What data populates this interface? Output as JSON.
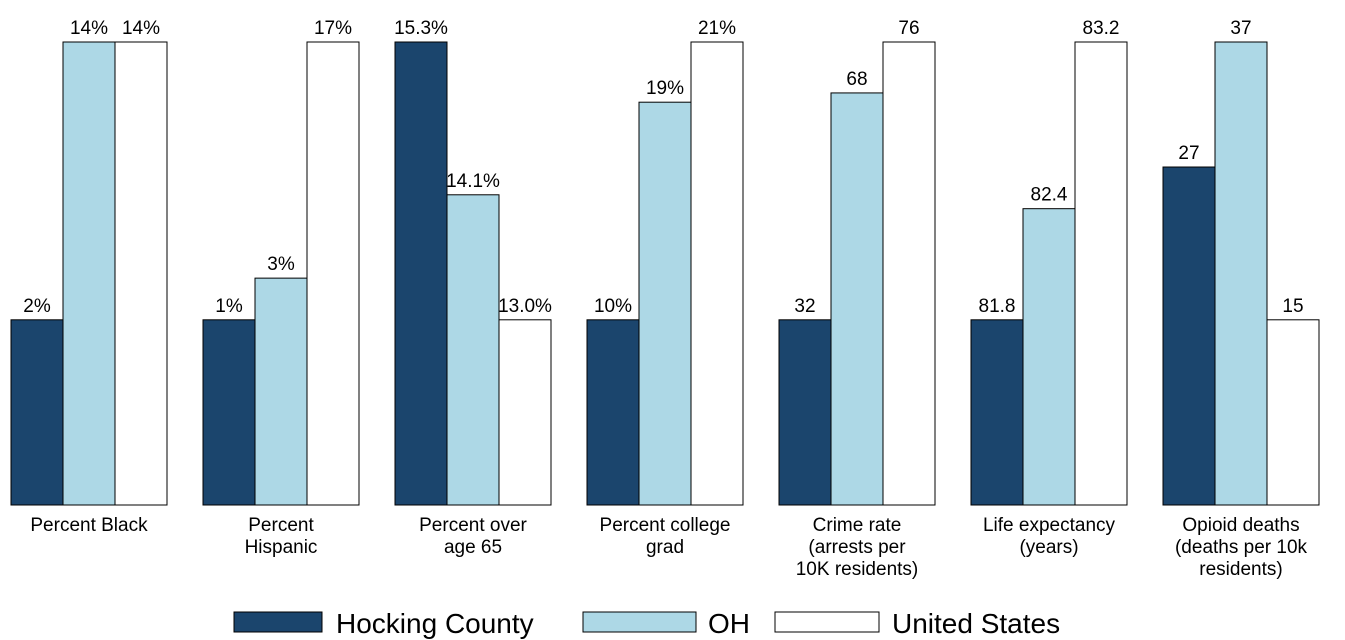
{
  "chart_data": {
    "type": "bar",
    "categories": [
      [
        "Percent Black"
      ],
      [
        "Percent",
        "Hispanic"
      ],
      [
        "Percent over",
        "age 65"
      ],
      [
        "Percent college",
        "grad"
      ],
      [
        "Crime rate",
        "(arrests per",
        "10K residents)"
      ],
      [
        "Life expectancy",
        "(years)"
      ],
      [
        "Opioid deaths",
        "(deaths per 10k",
        "residents)"
      ]
    ],
    "series": [
      {
        "name": "Hocking County",
        "color": "#1b456d",
        "relative_height": [
          0.4,
          0.4,
          1.0,
          0.4,
          0.4,
          0.4,
          0.73
        ],
        "labels": [
          "2%",
          "1%",
          "15.3%",
          "10%",
          "32",
          "81.8",
          "27"
        ]
      },
      {
        "name": "OH",
        "color": "#add8e6",
        "relative_height": [
          1.0,
          0.49,
          0.67,
          0.87,
          0.89,
          0.64,
          1.0
        ],
        "labels": [
          "14%",
          "3%",
          "14.1%",
          "19%",
          "68",
          "82.4",
          "37"
        ]
      },
      {
        "name": "United States",
        "color": "#ffffff",
        "relative_height": [
          1.0,
          1.0,
          0.4,
          1.0,
          1.0,
          1.0,
          0.4
        ],
        "labels": [
          "14%",
          "17%",
          "13.0%",
          "21%",
          "76",
          "83.2",
          "15"
        ]
      }
    ],
    "ylim": [
      0,
      1
    ],
    "legend_position": "bottom",
    "grid": false
  }
}
